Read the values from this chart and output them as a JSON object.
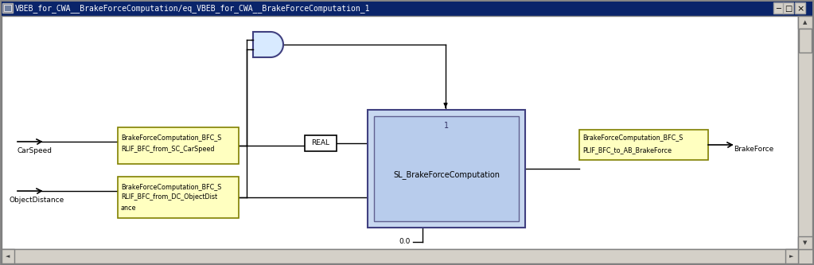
{
  "title": "VBEB_for_CWA__BrakeForceComputation/eq_VBEB_for_CWA__BrakeForceComputation_1",
  "bg_color": "#d4d0c8",
  "content_bg": "#ffffff",
  "titlebar_color": "#0a246a",
  "titlebar_text_color": "#ffffff",
  "yellow_box_color": "#ffffc0",
  "yellow_box_edge": "#808000",
  "blue_box_color": "#c8d8f0",
  "blue_box_edge": "#404080",
  "blue_box_inner_color": "#b8ccec",
  "blue_box_inner_edge": "#606090",
  "real_box_color": "#ffffff",
  "real_box_edge": "#000000",
  "and_gate_color": "#d8eaff",
  "and_gate_edge": "#404080",
  "label_carspeed": "CarSpeed",
  "label_objectdistance": "ObjectDistance",
  "label_brakeforce": "BrakeForce",
  "label_real": "REAL",
  "label_sl": "SL_BrakeForceComputation",
  "label_sl_num": "1",
  "label_bfc1_line1": "BrakeForceComputation_BFC_S",
  "label_bfc1_line2": "RLIF_BFC_from_SC_CarSpeed",
  "label_bfc2_line1": "BrakeForceComputation_BFC_S",
  "label_bfc2_line2": "RLIF_BFC_from_DC_ObjectDist",
  "label_bfc2_line3": "ance",
  "label_bfc3_line1": "BrakeForceComputation_BFC_S",
  "label_bfc3_line2": "PLIF_BFC_to_AB_BrakeForce",
  "label_00": "0.0",
  "wire_color": "#000000",
  "text_color": "#000000"
}
